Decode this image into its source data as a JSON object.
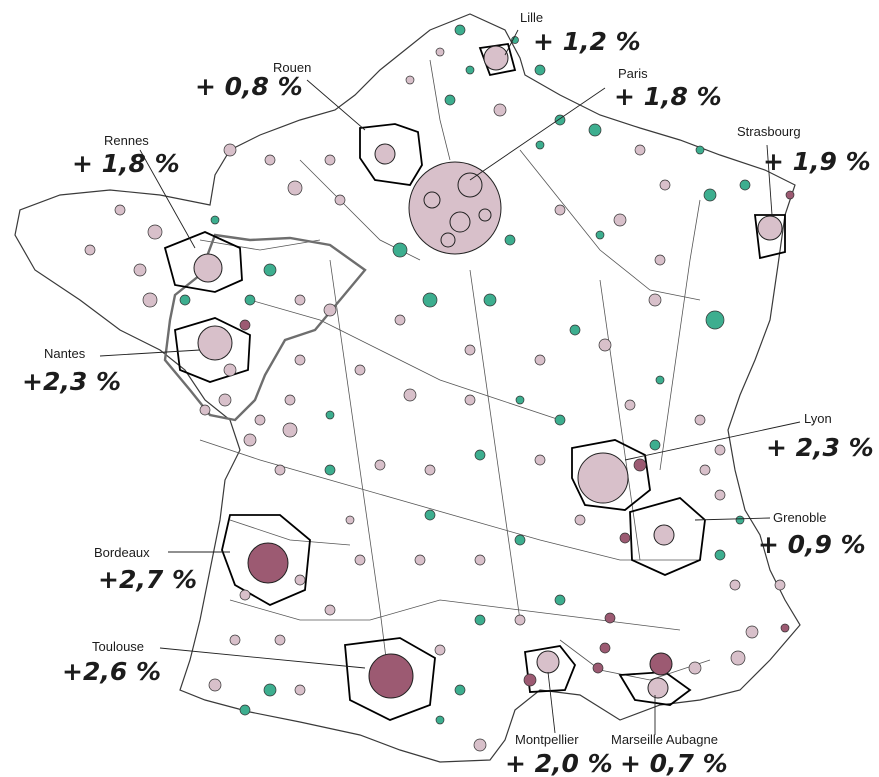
{
  "colors": {
    "background": "#ffffff",
    "zone_border": "#3a3a3a",
    "city_border": "#000000",
    "region_border": "#6e6e6e",
    "growth_high": "#9c5a72",
    "growth_mid": "#d8c0ca",
    "growth_low": "#3dae8f"
  },
  "cities": [
    {
      "name": "Lille",
      "rate": "+ 1,2 %",
      "category": "mid"
    },
    {
      "name": "Rouen",
      "rate": "+ 0,8 %",
      "category": "mid"
    },
    {
      "name": "Paris",
      "rate": "+ 1,8 %",
      "category": "mid"
    },
    {
      "name": "Strasbourg",
      "rate": "+ 1,9 %",
      "category": "mid"
    },
    {
      "name": "Rennes",
      "rate": "+ 1,8 %",
      "category": "mid"
    },
    {
      "name": "Nantes",
      "rate": "+2,3 %",
      "category": "mid"
    },
    {
      "name": "Lyon",
      "rate": "+ 2,3 %",
      "category": "mid"
    },
    {
      "name": "Grenoble",
      "rate": "+ 0,9 %",
      "category": "mid"
    },
    {
      "name": "Bordeaux",
      "rate": "+2,7 %",
      "category": "high"
    },
    {
      "name": "Toulouse",
      "rate": "+2,6 %",
      "category": "high"
    },
    {
      "name": "Montpellier",
      "rate": "+ 2,0 %",
      "category": "mid"
    },
    {
      "name": "Marseille Aubagne",
      "rate": "+ 0,7 %",
      "category": "mid"
    }
  ]
}
